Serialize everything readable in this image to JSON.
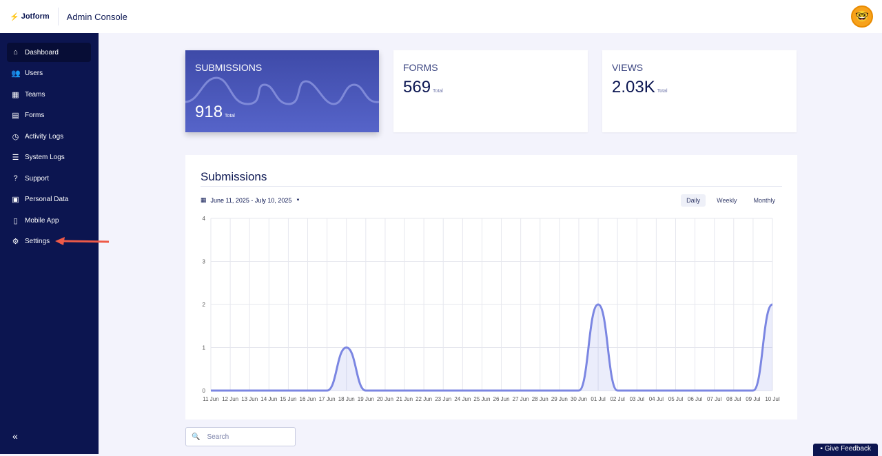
{
  "header": {
    "brand": "Jotform",
    "title": "Admin Console"
  },
  "sidebar": {
    "items": [
      {
        "label": "Dashboard",
        "icon": "⌂",
        "name": "home-icon"
      },
      {
        "label": "Users",
        "icon": "👥",
        "name": "users-icon"
      },
      {
        "label": "Teams",
        "icon": "▦",
        "name": "teams-icon"
      },
      {
        "label": "Forms",
        "icon": "▤",
        "name": "forms-icon"
      },
      {
        "label": "Activity Logs",
        "icon": "◷",
        "name": "clock-icon"
      },
      {
        "label": "System Logs",
        "icon": "☰",
        "name": "database-icon"
      },
      {
        "label": "Support",
        "icon": "?",
        "name": "support-icon"
      },
      {
        "label": "Personal Data",
        "icon": "▣",
        "name": "folder-icon"
      },
      {
        "label": "Mobile App",
        "icon": "▯",
        "name": "mobile-icon"
      },
      {
        "label": "Settings",
        "icon": "⚙",
        "name": "gear-icon"
      }
    ],
    "collapse": "«"
  },
  "cards": {
    "submissions": {
      "label": "SUBMISSIONS",
      "value": "918",
      "total": "Total"
    },
    "forms": {
      "label": "FORMS",
      "value": "569",
      "total": "Total"
    },
    "views": {
      "label": "VIEWS",
      "value": "2.03K",
      "total": "Total"
    }
  },
  "panel": {
    "title": "Submissions",
    "date_range": "June 11, 2025 - July 10, 2025",
    "tabs": [
      "Daily",
      "Weekly",
      "Monthly"
    ]
  },
  "search": {
    "placeholder": "Search"
  },
  "feedback": "Give Feedback",
  "chart_data": {
    "type": "area",
    "title": "Submissions",
    "xlabel": "",
    "ylabel": "",
    "ylim": [
      0,
      4
    ],
    "yticks": [
      0,
      1,
      2,
      3,
      4
    ],
    "categories": [
      "11 Jun",
      "12 Jun",
      "13 Jun",
      "14 Jun",
      "15 Jun",
      "16 Jun",
      "17 Jun",
      "18 Jun",
      "19 Jun",
      "20 Jun",
      "21 Jun",
      "22 Jun",
      "23 Jun",
      "24 Jun",
      "25 Jun",
      "26 Jun",
      "27 Jun",
      "28 Jun",
      "29 Jun",
      "30 Jun",
      "01 Jul",
      "02 Jul",
      "03 Jul",
      "04 Jul",
      "05 Jul",
      "06 Jul",
      "07 Jul",
      "08 Jul",
      "09 Jul",
      "10 Jul"
    ],
    "values": [
      0,
      0,
      0,
      0,
      0,
      0,
      0,
      1,
      0,
      0,
      0,
      0,
      0,
      0,
      0,
      0,
      0,
      0,
      0,
      0,
      2,
      0,
      0,
      0,
      0,
      0,
      0,
      0,
      0,
      2
    ],
    "color": "#7b86e2"
  }
}
